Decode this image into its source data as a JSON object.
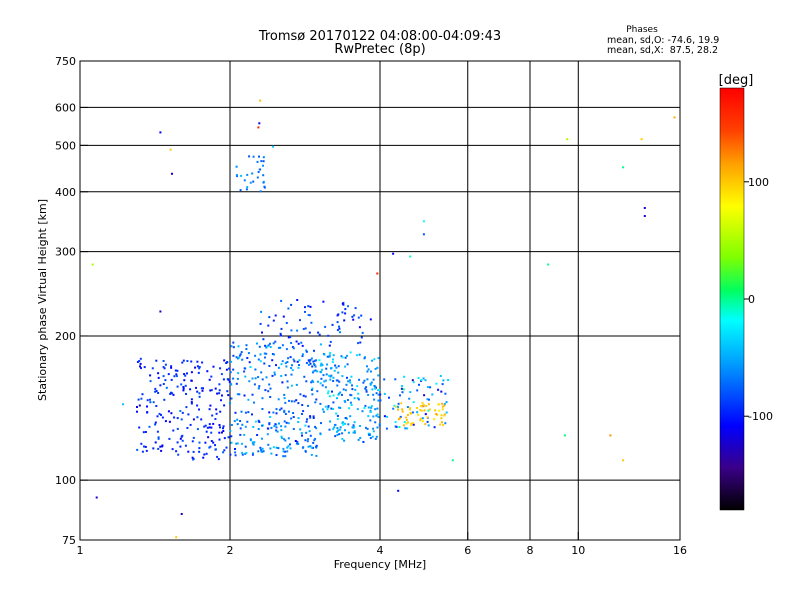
{
  "chart_data": {
    "type": "scatter",
    "title": "Tromsø 20170122 04:08:00-04:09:43",
    "subtitle": "RwPretec (8p)",
    "xlabel": "Frequency [MHz]",
    "ylabel": "Stationary phase Virtual Height [km]",
    "x_scale": "log",
    "y_scale": "log",
    "xlim": [
      1,
      16
    ],
    "ylim": [
      75,
      750
    ],
    "x_ticks": [
      1,
      2,
      4,
      6,
      8,
      10,
      16
    ],
    "y_ticks": [
      75,
      100,
      200,
      300,
      400,
      500,
      600,
      750
    ],
    "grid_x": [
      2,
      4,
      6,
      8,
      10
    ],
    "grid_y": [
      100,
      200,
      300,
      400,
      500,
      600
    ],
    "colorbar": {
      "label": "[deg]",
      "range": [
        -180,
        180
      ],
      "ticks": [
        100,
        0,
        -100
      ],
      "colors": [
        "#000000",
        "#3a0088",
        "#0000ff",
        "#00a0ff",
        "#00ffff",
        "#00ff60",
        "#80ff00",
        "#ffff00",
        "#ffa000",
        "#ff4000",
        "#ff0000"
      ]
    },
    "stats": {
      "title": "Phases",
      "line_o": "mean, sd,O: -74.6, 19.9",
      "line_x": "mean, sd,X:  87.5, 28.2"
    },
    "clusters": [
      {
        "xmin": 1.3,
        "xmax": 2.0,
        "ymin": 110,
        "ymax": 180,
        "n": 230,
        "phase_mean": -95,
        "phase_sd": 15
      },
      {
        "xmin": 2.0,
        "xmax": 3.0,
        "ymin": 112,
        "ymax": 195,
        "n": 320,
        "phase_mean": -70,
        "phase_sd": 25
      },
      {
        "xmin": 3.0,
        "xmax": 4.0,
        "ymin": 120,
        "ymax": 185,
        "n": 220,
        "phase_mean": -55,
        "phase_sd": 25
      },
      {
        "xmin": 4.0,
        "xmax": 5.5,
        "ymin": 128,
        "ymax": 165,
        "n": 70,
        "phase_mean": -60,
        "phase_sd": 40
      },
      {
        "xmin": 2.3,
        "xmax": 3.9,
        "ymin": 190,
        "ymax": 240,
        "n": 70,
        "phase_mean": -85,
        "phase_sd": 20
      },
      {
        "xmin": 4.3,
        "xmax": 5.4,
        "ymin": 130,
        "ymax": 145,
        "n": 55,
        "phase_mean": 100,
        "phase_sd": 12
      },
      {
        "xmin": 2.05,
        "xmax": 2.35,
        "ymin": 385,
        "ymax": 480,
        "n": 30,
        "phase_mean": -65,
        "phase_sd": 15
      }
    ],
    "points": [
      {
        "x": 1.45,
        "y": 532,
        "phase": -110
      },
      {
        "x": 1.53,
        "y": 436,
        "phase": -120
      },
      {
        "x": 1.52,
        "y": 490,
        "phase": 100
      },
      {
        "x": 2.3,
        "y": 620,
        "phase": 105
      },
      {
        "x": 2.29,
        "y": 556,
        "phase": -120
      },
      {
        "x": 2.28,
        "y": 545,
        "phase": 160
      },
      {
        "x": 2.44,
        "y": 497,
        "phase": -40
      },
      {
        "x": 1.06,
        "y": 282,
        "phase": 50
      },
      {
        "x": 1.45,
        "y": 225,
        "phase": -125
      },
      {
        "x": 1.22,
        "y": 144,
        "phase": -40
      },
      {
        "x": 1.08,
        "y": 92,
        "phase": -120
      },
      {
        "x": 1.6,
        "y": 85,
        "phase": -125
      },
      {
        "x": 1.56,
        "y": 76,
        "phase": 100
      },
      {
        "x": 4.35,
        "y": 95,
        "phase": -110
      },
      {
        "x": 5.6,
        "y": 110,
        "phase": 0
      },
      {
        "x": 4.9,
        "y": 347,
        "phase": -20
      },
      {
        "x": 4.9,
        "y": 326,
        "phase": -80
      },
      {
        "x": 4.25,
        "y": 297,
        "phase": -110
      },
      {
        "x": 3.95,
        "y": 270,
        "phase": 160
      },
      {
        "x": 4.6,
        "y": 293,
        "phase": -10
      },
      {
        "x": 9.5,
        "y": 515,
        "phase": 50
      },
      {
        "x": 12.3,
        "y": 450,
        "phase": 0
      },
      {
        "x": 13.6,
        "y": 370,
        "phase": -120
      },
      {
        "x": 13.6,
        "y": 356,
        "phase": -120
      },
      {
        "x": 8.7,
        "y": 282,
        "phase": 0
      },
      {
        "x": 13.4,
        "y": 515,
        "phase": 100
      },
      {
        "x": 15.6,
        "y": 572,
        "phase": 110
      },
      {
        "x": 9.4,
        "y": 124,
        "phase": 5
      },
      {
        "x": 11.6,
        "y": 124,
        "phase": 120
      },
      {
        "x": 12.3,
        "y": 110,
        "phase": 100
      }
    ]
  }
}
